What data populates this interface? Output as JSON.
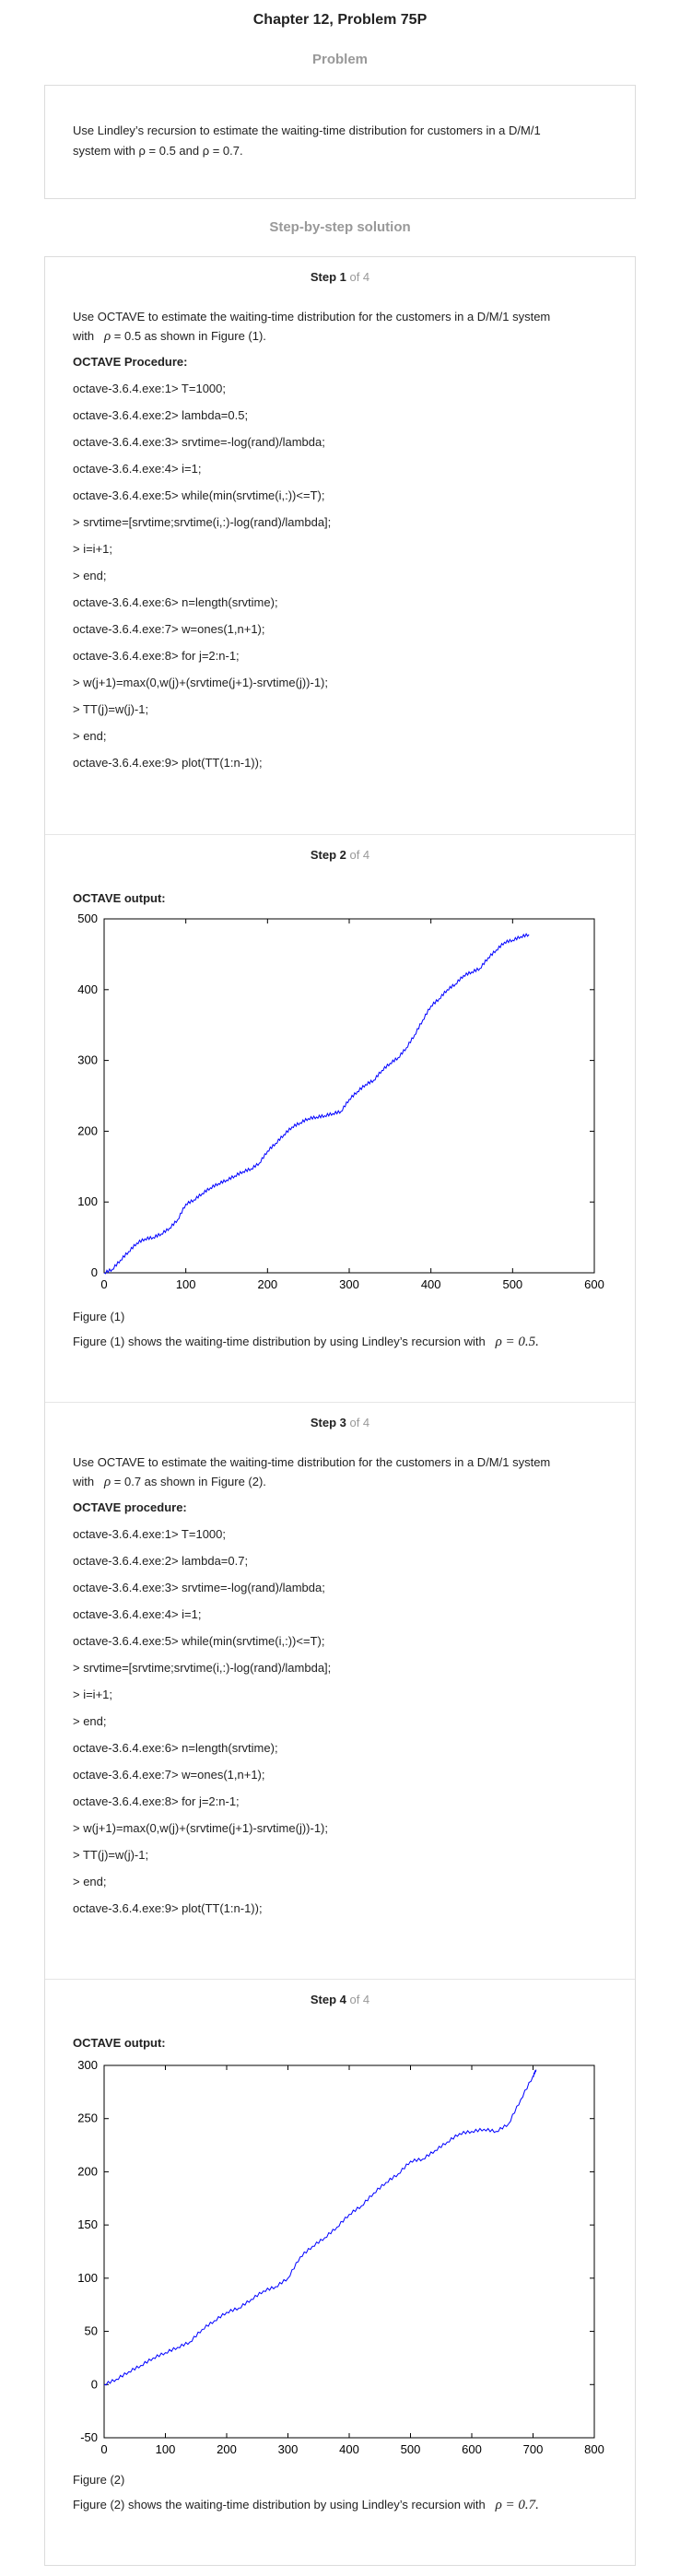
{
  "header": {
    "title": "Chapter 12, Problem 75P",
    "problem_label": "Problem",
    "solution_label": "Step-by-step solution"
  },
  "problem": {
    "text_line1": "Use Lindley’s recursion to estimate the waiting-time distribution for customers in a D/M/1",
    "text_line2": "system with ρ = 0.5 and ρ = 0.7."
  },
  "steps": [
    {
      "num": "Step 1",
      "of": " of 4",
      "intro_line1": "Use OCTAVE to estimate the waiting-time distribution for the customers in a D/M/1 system",
      "intro_pre": "with",
      "intro_rho": "ρ",
      "intro_post": "= 0.5 as shown in Figure (1).",
      "code_heading": "OCTAVE Procedure:",
      "code": [
        "octave-3.6.4.exe:1> T=1000;",
        "octave-3.6.4.exe:2> lambda=0.5;",
        "octave-3.6.4.exe:3> srvtime=-log(rand)/lambda;",
        "octave-3.6.4.exe:4> i=1;",
        "octave-3.6.4.exe:5> while(min(srvtime(i,:))<=T);",
        "> srvtime=[srvtime;srvtime(i,:)-log(rand)/lambda];",
        "> i=i+1;",
        "> end;",
        "octave-3.6.4.exe:6> n=length(srvtime);",
        "octave-3.6.4.exe:7> w=ones(1,n+1);",
        "octave-3.6.4.exe:8> for j=2:n-1;",
        "> w(j+1)=max(0,w(j)+(srvtime(j+1)-srvtime(j))-1);",
        "> TT(j)=w(j)-1;",
        "> end;",
        "octave-3.6.4.exe:9> plot(TT(1:n-1));"
      ]
    },
    {
      "num": "Step 2",
      "of": " of 4",
      "output_heading": "OCTAVE output:",
      "fig_label": "Figure (1)",
      "fig_text": "Figure (1) shows the waiting-time distribution by using Lindley’s recursion with",
      "fig_formula": "ρ = 0.5."
    },
    {
      "num": "Step 3",
      "of": " of 4",
      "intro_line1": "Use OCTAVE to estimate the waiting-time distribution for the customers in a D/M/1 system",
      "intro_pre": "with",
      "intro_rho": "ρ",
      "intro_post": "= 0.7 as shown in Figure (2).",
      "code_heading": "OCTAVE procedure:",
      "code": [
        "octave-3.6.4.exe:1> T=1000;",
        "octave-3.6.4.exe:2> lambda=0.7;",
        "octave-3.6.4.exe:3> srvtime=-log(rand)/lambda;",
        "octave-3.6.4.exe:4> i=1;",
        "octave-3.6.4.exe:5> while(min(srvtime(i,:))<=T);",
        "> srvtime=[srvtime;srvtime(i,:)-log(rand)/lambda];",
        "> i=i+1;",
        "> end;",
        "octave-3.6.4.exe:6> n=length(srvtime);",
        "octave-3.6.4.exe:7> w=ones(1,n+1);",
        "octave-3.6.4.exe:8> for j=2:n-1;",
        "> w(j+1)=max(0,w(j)+(srvtime(j+1)-srvtime(j))-1);",
        "> TT(j)=w(j)-1;",
        "> end;",
        "octave-3.6.4.exe:9> plot(TT(1:n-1));"
      ]
    },
    {
      "num": "Step 4",
      "of": " of 4",
      "output_heading": "OCTAVE output:",
      "fig_label": "Figure (2)",
      "fig_text": "Figure (2) shows the waiting-time distribution by using Lindley’s recursion with",
      "fig_formula": "ρ = 0.7."
    }
  ],
  "chart_data": [
    {
      "type": "line",
      "line_color": "#0000ff",
      "xlim": [
        0,
        600
      ],
      "ylim": [
        0,
        500
      ],
      "xticks": [
        0,
        100,
        200,
        300,
        400,
        500,
        600
      ],
      "yticks": [
        0,
        100,
        200,
        300,
        400,
        500
      ],
      "grid": false,
      "series": [
        {
          "x": [
            0,
            10,
            20,
            30,
            40,
            50,
            60,
            70,
            80,
            90,
            100,
            110,
            120,
            130,
            140,
            150,
            160,
            170,
            180,
            190,
            200,
            210,
            220,
            230,
            240,
            250,
            260,
            270,
            280,
            290,
            300,
            310,
            320,
            330,
            340,
            350,
            360,
            370,
            380,
            390,
            400,
            410,
            420,
            430,
            440,
            450,
            460,
            470,
            480,
            490,
            500,
            510,
            520
          ],
          "y": [
            0,
            5,
            18,
            30,
            42,
            48,
            50,
            55,
            63,
            75,
            97,
            103,
            112,
            120,
            126,
            131,
            137,
            143,
            147,
            155,
            172,
            183,
            195,
            206,
            212,
            218,
            220,
            222,
            225,
            228,
            245,
            256,
            266,
            272,
            286,
            296,
            304,
            318,
            336,
            357,
            377,
            387,
            400,
            408,
            420,
            425,
            430,
            445,
            456,
            467,
            470,
            475,
            478
          ]
        }
      ]
    },
    {
      "type": "line",
      "line_color": "#0000ff",
      "xlim": [
        0,
        800
      ],
      "ylim": [
        -50,
        300
      ],
      "xticks": [
        0,
        100,
        200,
        300,
        400,
        500,
        600,
        700,
        800
      ],
      "yticks": [
        -50,
        0,
        50,
        100,
        150,
        200,
        250,
        300
      ],
      "grid": false,
      "series": [
        {
          "x": [
            0,
            20,
            40,
            60,
            80,
            100,
            120,
            140,
            160,
            180,
            200,
            220,
            240,
            260,
            280,
            300,
            320,
            340,
            360,
            380,
            400,
            420,
            440,
            460,
            480,
            500,
            520,
            540,
            560,
            580,
            600,
            620,
            640,
            660,
            680,
            700,
            705
          ],
          "y": [
            0,
            5,
            12,
            18,
            25,
            30,
            35,
            40,
            52,
            60,
            68,
            72,
            80,
            88,
            92,
            100,
            120,
            130,
            138,
            148,
            160,
            168,
            180,
            190,
            198,
            210,
            212,
            220,
            228,
            236,
            238,
            240,
            238,
            245,
            268,
            290,
            296
          ]
        }
      ]
    }
  ]
}
